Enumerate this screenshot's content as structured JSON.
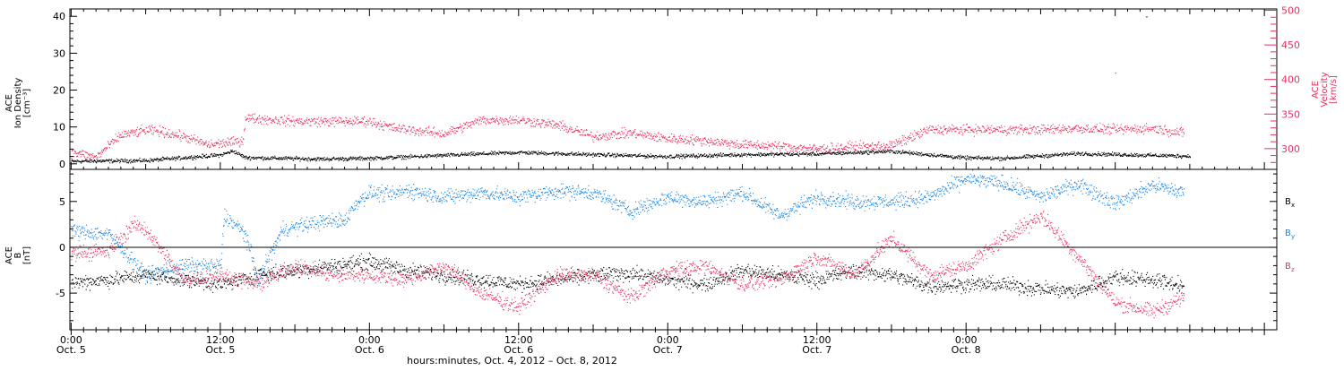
{
  "chart_data": [
    {
      "type": "scatter",
      "panel": "top",
      "ylabel_left": [
        "ACE",
        "Ion Density",
        "[cm⁻³]"
      ],
      "ylabel_right": [
        "ACE",
        "Velocity",
        "[km/s]"
      ],
      "ylim_left": [
        -1.5,
        42
      ],
      "ylim_right": [
        270,
        502
      ],
      "yticks_left": [
        0,
        10,
        20,
        30,
        40
      ],
      "yticks_right": [
        300,
        350,
        400,
        450,
        500
      ],
      "series": [
        {
          "name": "Density",
          "color": "#000000",
          "axis": "left",
          "x": [
            0,
            6,
            12,
            13,
            14,
            20,
            24,
            30,
            36,
            42,
            48,
            54,
            60,
            66,
            72,
            75,
            81,
            87,
            90
          ],
          "y": [
            0.8,
            1.0,
            2.5,
            3.6,
            1.8,
            1.4,
            1.6,
            2.4,
            3.2,
            2.6,
            2.1,
            2.6,
            2.8,
            3.5,
            1.7,
            1.6,
            2.9,
            2.4,
            2.2
          ]
        },
        {
          "name": "Velocity",
          "color": "#e8305f",
          "axis": "right",
          "x": [
            0,
            1,
            2,
            3,
            4,
            6,
            7,
            9,
            11,
            13,
            13.8,
            14,
            18,
            24,
            26,
            30,
            33,
            36,
            39,
            42,
            45,
            48,
            51,
            54,
            56,
            60,
            63,
            66,
            69,
            72,
            78,
            81,
            84,
            87,
            89.5
          ],
          "y": [
            295,
            292,
            288,
            305,
            320,
            327,
            326,
            318,
            306,
            310,
            312,
            345,
            340,
            340,
            330,
            322,
            342,
            342,
            335,
            318,
            323,
            315,
            312,
            306,
            305,
            300,
            303,
            305,
            328,
            328,
            328,
            330,
            328,
            330,
            323
          ]
        }
      ],
      "annotations": [
        {
          "x": 84.0,
          "y": 410,
          "color": "#e8305f",
          "axis": "right"
        },
        {
          "x": 86.5,
          "y": 40,
          "color": "#000000",
          "axis": "left"
        }
      ]
    },
    {
      "type": "scatter",
      "panel": "bottom",
      "ylabel_left": [
        "ACE",
        "B",
        "[nT]"
      ],
      "ylim": [
        -9,
        8.5
      ],
      "yticks": [
        -5,
        0,
        5
      ],
      "zero_line": true,
      "legend_right": [
        "Bx",
        "By",
        "Bz"
      ],
      "series": [
        {
          "name": "Bx",
          "color": "#000000",
          "x": [
            0,
            3,
            6,
            9,
            12,
            15,
            18,
            21,
            24,
            27,
            30,
            33,
            36,
            39,
            42,
            45,
            48,
            51,
            54,
            57,
            60,
            63,
            66,
            69,
            72,
            75,
            78,
            81,
            84,
            87,
            89.5
          ],
          "y": [
            -3.8,
            -3.5,
            -3.0,
            -3.5,
            -4.0,
            -3.0,
            -2.5,
            -2.0,
            -1.5,
            -2.5,
            -3.0,
            -3.5,
            -4.0,
            -3.5,
            -3.0,
            -2.8,
            -3.5,
            -4.0,
            -2.5,
            -3.0,
            -3.5,
            -2.5,
            -3.0,
            -4.2,
            -4.0,
            -4.0,
            -4.5,
            -4.8,
            -3.2,
            -3.5,
            -4.2
          ]
        },
        {
          "name": "By",
          "color": "#1a84e0",
          "x": [
            0,
            3,
            5,
            6,
            9,
            12,
            12.3,
            14,
            15,
            17,
            20,
            22,
            23,
            24,
            26,
            27,
            30,
            33,
            36,
            39,
            42,
            45,
            48,
            51,
            54,
            57,
            60,
            63,
            66,
            69,
            72,
            75,
            78,
            81,
            84,
            87,
            89.5
          ],
          "y": [
            1.8,
            1.5,
            -1.5,
            -3.0,
            -2.0,
            -2.0,
            3.5,
            1.5,
            -3.5,
            2.0,
            2.8,
            3.0,
            5.0,
            6.0,
            5.8,
            6.3,
            5.5,
            6.0,
            5.5,
            6.2,
            6.0,
            4.0,
            5.5,
            5.0,
            6.0,
            3.5,
            5.5,
            5.0,
            5.0,
            5.5,
            7.5,
            7.0,
            5.5,
            7.0,
            4.8,
            6.8,
            6.0
          ]
        },
        {
          "name": "Bz",
          "color": "#e8305f",
          "x": [
            0,
            3,
            5,
            6,
            9,
            12,
            15,
            18,
            21,
            24,
            27,
            30,
            33,
            36,
            39,
            42,
            45,
            48,
            51,
            54,
            57,
            60,
            63,
            66,
            69,
            72,
            75,
            78,
            81,
            84,
            87,
            89.5
          ],
          "y": [
            -0.5,
            -0.5,
            2.5,
            2.0,
            -3.5,
            -3.0,
            -4.0,
            -2.0,
            -3.0,
            -3.0,
            -3.5,
            -2.0,
            -5.0,
            -6.5,
            -3.0,
            -3.0,
            -5.5,
            -2.5,
            -2.0,
            -4.0,
            -3.5,
            -1.0,
            -3.0,
            1.0,
            -3.0,
            -2.0,
            1.0,
            3.5,
            -1.0,
            -6.0,
            -7.0,
            -5.5
          ]
        }
      ]
    }
  ],
  "xaxis": {
    "xlim": [
      -0.1,
      97
    ],
    "major_ticks": [
      {
        "x": 0,
        "time": "0:00",
        "date": "Oct. 5"
      },
      {
        "x": 12,
        "time": "12:00",
        "date": "Oct. 5"
      },
      {
        "x": 24,
        "time": "0:00",
        "date": "Oct. 6"
      },
      {
        "x": 36,
        "time": "12:00",
        "date": "Oct. 6"
      },
      {
        "x": 48,
        "time": "0:00",
        "date": "Oct. 7"
      },
      {
        "x": 60,
        "time": "12:00",
        "date": "Oct. 7"
      },
      {
        "x": 72,
        "time": "0:00",
        "date": "Oct. 8"
      }
    ],
    "title": "hours:minutes, Oct.  4, 2012 – Oct.  8, 2012"
  }
}
